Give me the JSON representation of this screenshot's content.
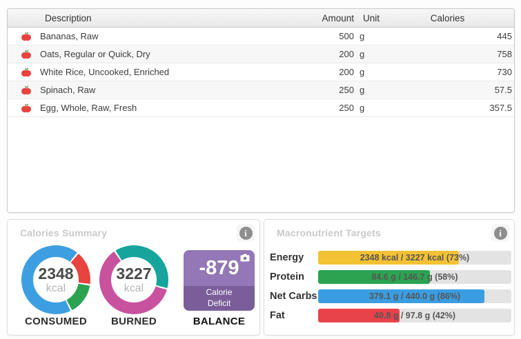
{
  "table": {
    "headers": {
      "description": "Description",
      "amount": "Amount",
      "unit": "Unit",
      "calories": "Calories"
    },
    "rows": [
      {
        "description": "Bananas, Raw",
        "amount": "500",
        "unit": "g",
        "calories": "445"
      },
      {
        "description": "Oats, Regular or Quick, Dry",
        "amount": "200",
        "unit": "g",
        "calories": "758"
      },
      {
        "description": "White Rice, Uncooked, Enriched",
        "amount": "200",
        "unit": "g",
        "calories": "730"
      },
      {
        "description": "Spinach, Raw",
        "amount": "250",
        "unit": "g",
        "calories": "57.5"
      },
      {
        "description": "Egg, Whole, Raw, Fresh",
        "amount": "250",
        "unit": "g",
        "calories": "357.5"
      }
    ]
  },
  "icons": {
    "info": "i"
  },
  "calories_summary": {
    "title": "Calories Summary",
    "consumed": {
      "value": "2348",
      "unit": "kcal",
      "label": "CONSUMED"
    },
    "burned": {
      "value": "3227",
      "unit": "kcal",
      "label": "BURNED"
    },
    "balance": {
      "value": "-879",
      "caption_line1": "Calorie",
      "caption_line2": "Deficit",
      "label": "BALANCE",
      "bg_light": "#9377B6",
      "bg_dark": "#7B5E99"
    }
  },
  "macronutrient_targets": {
    "title": "Macronutrient Targets",
    "rows": [
      {
        "label": "Energy",
        "text": "2348 kcal / 3227 kcal (73%)",
        "percent": 73,
        "color": "#F3C134"
      },
      {
        "label": "Protein",
        "text": "84.6 g / 146.7 g (58%)",
        "percent": 58,
        "color": "#2BA351"
      },
      {
        "label": "Net Carbs",
        "text": "379.1 g / 440.0 g (86%)",
        "percent": 86,
        "color": "#3B9DE1"
      },
      {
        "label": "Fat",
        "text": "40.8 g / 97.8 g (42%)",
        "percent": 42,
        "color": "#E8424A"
      }
    ]
  },
  "chart_data": [
    {
      "type": "pie",
      "name": "calories-consumed-donut",
      "label": "CONSUMED",
      "center_value": 2348,
      "center_unit": "kcal",
      "stops": [
        {
          "color": "#3D9FE1",
          "to": 38
        },
        {
          "color": "#FFFFFF",
          "to": 41
        },
        {
          "color": "#E8433F",
          "to": 97
        },
        {
          "color": "#FFFFFF",
          "to": 100
        },
        {
          "color": "#2BA351",
          "to": 152
        },
        {
          "color": "#FFFFFF",
          "to": 155
        },
        {
          "color": "#3D9FE1",
          "to": 360
        }
      ]
    },
    {
      "type": "pie",
      "name": "calories-burned-donut",
      "label": "BURNED",
      "center_value": 3227,
      "center_unit": "kcal",
      "stops": [
        {
          "color": "#16A49C",
          "to": 104
        },
        {
          "color": "#FFFFFF",
          "to": 107
        },
        {
          "color": "#C9529F",
          "to": 325
        },
        {
          "color": "#FFFFFF",
          "to": 328
        },
        {
          "color": "#16A49C",
          "to": 360
        }
      ]
    },
    {
      "type": "bar",
      "name": "macronutrient-targets-bars",
      "categories": [
        "Energy",
        "Protein",
        "Net Carbs",
        "Fat"
      ],
      "values": [
        73,
        58,
        86,
        42
      ],
      "value_labels": [
        "2348 kcal / 3227 kcal (73%)",
        "84.6 g / 146.7 g (58%)",
        "379.1 g / 440.0 g (86%)",
        "40.8 g / 97.8 g (42%)"
      ],
      "xlim": [
        0,
        100
      ]
    }
  ]
}
